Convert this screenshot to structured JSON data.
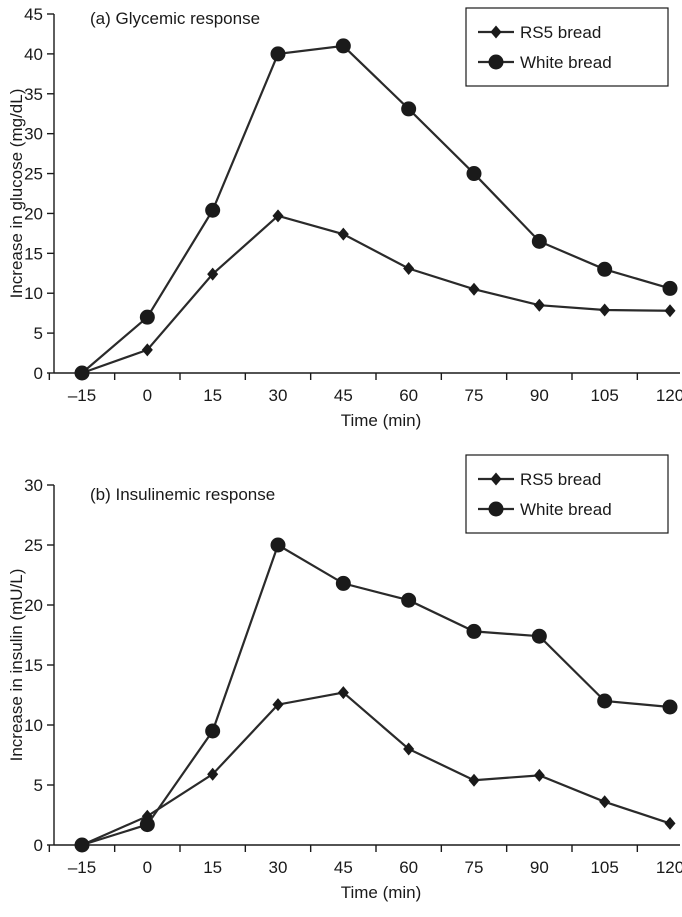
{
  "chart_data": [
    {
      "type": "line",
      "title": "(a) Glycemic response",
      "xlabel": "Time (min)",
      "ylabel": "Increase in glucose (mg/dL)",
      "x": [
        -15,
        0,
        15,
        30,
        45,
        60,
        75,
        90,
        105,
        120
      ],
      "x_tick_labels": [
        "–15",
        "0",
        "15",
        "30",
        "45",
        "60",
        "75",
        "90",
        "105",
        "120"
      ],
      "ylim": [
        0,
        45
      ],
      "y_ticks": [
        0,
        5,
        10,
        15,
        20,
        25,
        30,
        35,
        40,
        45
      ],
      "legend_position": "top-right",
      "series": [
        {
          "name": "RS5 bread",
          "marker": "diamond",
          "values": [
            0,
            2.9,
            12.4,
            19.7,
            17.4,
            13.1,
            10.5,
            8.5,
            7.9,
            7.8
          ]
        },
        {
          "name": "White bread",
          "marker": "circle",
          "values": [
            0,
            7.0,
            20.4,
            40.0,
            41.0,
            33.1,
            25.0,
            16.5,
            13.0,
            10.6
          ]
        }
      ]
    },
    {
      "type": "line",
      "title": "(b) Insulinemic response",
      "xlabel": "Time (min)",
      "ylabel": "Increase in insulin (mU/L)",
      "x": [
        -15,
        0,
        15,
        30,
        45,
        60,
        75,
        90,
        105,
        120
      ],
      "x_tick_labels": [
        "–15",
        "0",
        "15",
        "30",
        "45",
        "60",
        "75",
        "90",
        "105",
        "120"
      ],
      "ylim": [
        0,
        30
      ],
      "y_ticks": [
        0,
        5,
        10,
        15,
        20,
        25,
        30
      ],
      "legend_position": "top-right",
      "series": [
        {
          "name": "RS5 bread",
          "marker": "diamond",
          "values": [
            0,
            2.4,
            5.9,
            11.7,
            12.7,
            8.0,
            5.4,
            5.8,
            3.6,
            1.8
          ]
        },
        {
          "name": "White bread",
          "marker": "circle",
          "values": [
            0,
            1.7,
            9.5,
            25.0,
            21.8,
            20.4,
            17.8,
            17.4,
            12.0,
            11.5
          ]
        }
      ]
    }
  ]
}
